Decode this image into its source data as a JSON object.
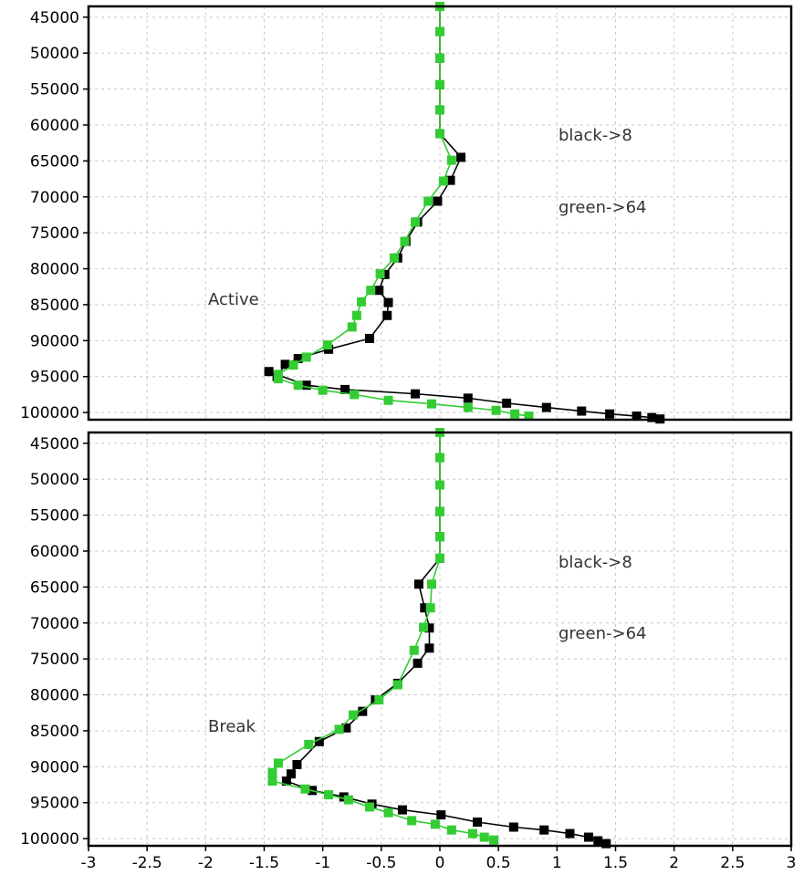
{
  "chart_data": [
    {
      "type": "line",
      "panel": "top",
      "annotations": [
        "Active",
        "black->8",
        "green->64"
      ],
      "xlim": [
        -3,
        3
      ],
      "ylim": [
        43500,
        101000
      ],
      "y_reversed": true,
      "y_ticks": [
        45000,
        50000,
        55000,
        60000,
        65000,
        70000,
        75000,
        80000,
        85000,
        90000,
        95000,
        100000
      ],
      "grid": true,
      "series": [
        {
          "name": "black->8",
          "color": "#000000",
          "points": [
            [
              0,
              43500
            ],
            [
              0,
              47000
            ],
            [
              0,
              50700
            ],
            [
              0,
              54400
            ],
            [
              0,
              57900
            ],
            [
              0,
              61200
            ],
            [
              0.18,
              64500
            ],
            [
              0.09,
              67700
            ],
            [
              -0.02,
              70600
            ],
            [
              -0.19,
              73500
            ],
            [
              -0.29,
              76200
            ],
            [
              -0.36,
              78500
            ],
            [
              -0.47,
              80800
            ],
            [
              -0.52,
              83000
            ],
            [
              -0.44,
              84700
            ],
            [
              -0.45,
              86500
            ],
            [
              -0.6,
              89700
            ],
            [
              -0.95,
              91200
            ],
            [
              -1.21,
              92500
            ],
            [
              -1.32,
              93300
            ],
            [
              -1.39,
              95000
            ],
            [
              -1.46,
              94300
            ],
            [
              -1.14,
              96200
            ],
            [
              -0.81,
              96800
            ],
            [
              -0.21,
              97400
            ],
            [
              0.24,
              98000
            ],
            [
              0.57,
              98700
            ],
            [
              0.91,
              99300
            ],
            [
              1.21,
              99800
            ],
            [
              1.45,
              100200
            ],
            [
              1.68,
              100500
            ],
            [
              1.81,
              100700
            ],
            [
              1.88,
              100900
            ]
          ]
        },
        {
          "name": "green->64",
          "color": "#33cc33",
          "points": [
            [
              0,
              43500
            ],
            [
              0,
              47000
            ],
            [
              0,
              50700
            ],
            [
              0,
              54400
            ],
            [
              0,
              57900
            ],
            [
              0,
              61200
            ],
            [
              0.1,
              64900
            ],
            [
              0.03,
              67800
            ],
            [
              -0.1,
              70600
            ],
            [
              -0.21,
              73500
            ],
            [
              -0.3,
              76200
            ],
            [
              -0.39,
              78500
            ],
            [
              -0.51,
              80700
            ],
            [
              -0.59,
              83000
            ],
            [
              -0.67,
              84600
            ],
            [
              -0.71,
              86500
            ],
            [
              -0.75,
              88100
            ],
            [
              -0.96,
              90600
            ],
            [
              -1.14,
              92300
            ],
            [
              -1.25,
              93400
            ],
            [
              -1.38,
              94700
            ],
            [
              -1.38,
              95300
            ],
            [
              -1.21,
              96200
            ],
            [
              -1.0,
              96900
            ],
            [
              -0.73,
              97500
            ],
            [
              -0.44,
              98300
            ],
            [
              -0.07,
              98800
            ],
            [
              0.24,
              99300
            ],
            [
              0.48,
              99700
            ],
            [
              0.64,
              100200
            ],
            [
              0.76,
              100500
            ]
          ]
        }
      ]
    },
    {
      "type": "line",
      "panel": "bottom",
      "annotations": [
        "Break",
        "black->8",
        "green->64"
      ],
      "xlim": [
        -3,
        3
      ],
      "ylim": [
        43500,
        101000
      ],
      "y_reversed": true,
      "y_ticks": [
        45000,
        50000,
        55000,
        60000,
        65000,
        70000,
        75000,
        80000,
        85000,
        90000,
        95000,
        100000
      ],
      "x_ticks": [
        -3,
        -2.5,
        -2,
        -1.5,
        -1,
        -0.5,
        0,
        0.5,
        1,
        1.5,
        2,
        2.5,
        3
      ],
      "grid": true,
      "series": [
        {
          "name": "black->8",
          "color": "#000000",
          "points": [
            [
              0,
              43500
            ],
            [
              0,
              47000
            ],
            [
              0,
              50800
            ],
            [
              0,
              54500
            ],
            [
              0,
              58000
            ],
            [
              0,
              61000
            ],
            [
              -0.18,
              64600
            ],
            [
              -0.13,
              67900
            ],
            [
              -0.09,
              70700
            ],
            [
              -0.09,
              73500
            ],
            [
              -0.19,
              75600
            ],
            [
              -0.36,
              78400
            ],
            [
              -0.55,
              80700
            ],
            [
              -0.66,
              82300
            ],
            [
              -0.8,
              84600
            ],
            [
              -1.03,
              86500
            ],
            [
              -1.22,
              89700
            ],
            [
              -1.27,
              91000
            ],
            [
              -1.31,
              92000
            ],
            [
              -1.09,
              93300
            ],
            [
              -0.82,
              94200
            ],
            [
              -0.58,
              95200
            ],
            [
              -0.32,
              96000
            ],
            [
              0.01,
              96700
            ],
            [
              0.32,
              97700
            ],
            [
              0.63,
              98400
            ],
            [
              0.89,
              98800
            ],
            [
              1.11,
              99300
            ],
            [
              1.27,
              99800
            ],
            [
              1.35,
              100300
            ],
            [
              1.42,
              100700
            ]
          ]
        },
        {
          "name": "green->64",
          "color": "#33cc33",
          "points": [
            [
              0,
              43500
            ],
            [
              0,
              47000
            ],
            [
              0,
              50800
            ],
            [
              0,
              54500
            ],
            [
              0,
              58000
            ],
            [
              0,
              61000
            ],
            [
              -0.07,
              64600
            ],
            [
              -0.08,
              67900
            ],
            [
              -0.14,
              70600
            ],
            [
              -0.22,
              73800
            ],
            [
              -0.36,
              78600
            ],
            [
              -0.52,
              80700
            ],
            [
              -0.74,
              82800
            ],
            [
              -0.86,
              84800
            ],
            [
              -1.12,
              86900
            ],
            [
              -1.38,
              89500
            ],
            [
              -1.43,
              90800
            ],
            [
              -1.43,
              92000
            ],
            [
              -1.15,
              93100
            ],
            [
              -0.95,
              93900
            ],
            [
              -0.78,
              94600
            ],
            [
              -0.6,
              95600
            ],
            [
              -0.44,
              96400
            ],
            [
              -0.24,
              97500
            ],
            [
              -0.04,
              98000
            ],
            [
              0.1,
              98800
            ],
            [
              0.28,
              99300
            ],
            [
              0.38,
              99800
            ],
            [
              0.46,
              100200
            ]
          ]
        }
      ]
    }
  ]
}
